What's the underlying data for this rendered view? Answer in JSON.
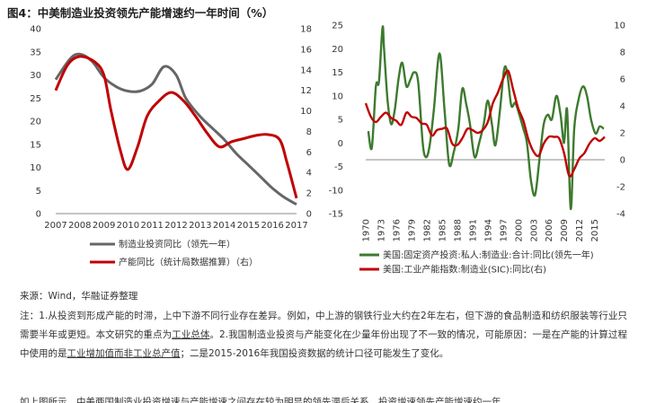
{
  "figure": {
    "title": "图4：中美制造业投资领先产能增速约一年时间（%）"
  },
  "charts": [
    {
      "id": "china",
      "type": "line",
      "x_labels": [
        "2007",
        "2008",
        "2009",
        "2010",
        "2011",
        "2012",
        "2013",
        "2014",
        "2015",
        "2016",
        "2017"
      ],
      "x_range": [
        2007,
        2017
      ],
      "y_left": {
        "range": [
          0,
          40
        ],
        "ticks": [
          "0",
          "5",
          "10",
          "15",
          "20",
          "25",
          "30",
          "35",
          "40"
        ]
      },
      "y_right": {
        "range": [
          0,
          18
        ],
        "ticks": [
          "0",
          "2",
          "4",
          "6",
          "8",
          "10",
          "12",
          "14",
          "16",
          "18"
        ]
      },
      "series": [
        {
          "name": "制造业投资同比（领先一年）",
          "color": "#666666",
          "axis": "left",
          "x": [
            2007,
            2007.6,
            2008,
            2008.5,
            2009,
            2009.5,
            2010,
            2010.5,
            2011,
            2011.5,
            2012,
            2012.4,
            2013,
            2013.5,
            2014,
            2014.5,
            2015,
            2015.5,
            2016,
            2016.5,
            2017
          ],
          "values": [
            29,
            33.5,
            34.5,
            33,
            29.5,
            27.5,
            26.5,
            26.5,
            28,
            31.8,
            30,
            25,
            21,
            18.5,
            16,
            13,
            10.5,
            8,
            5.5,
            3.5,
            2
          ]
        },
        {
          "name": "产能同比（统计局数据推算）（右）",
          "color": "#c00000",
          "axis": "right",
          "x": [
            2007,
            2007.5,
            2008,
            2008.6,
            2009,
            2009.3,
            2009.7,
            2010,
            2010.4,
            2010.8,
            2011.3,
            2011.8,
            2012.3,
            2012.8,
            2013.3,
            2013.8,
            2014.3,
            2014.8,
            2015.3,
            2015.8,
            2016.3,
            2016.6,
            2017
          ],
          "values": [
            12,
            14.5,
            15.3,
            14.8,
            13.5,
            10,
            6,
            4.3,
            6.5,
            9.5,
            11,
            11.8,
            11,
            9.5,
            7.8,
            6.5,
            7,
            7.3,
            7.6,
            7.7,
            7.2,
            5,
            1.5
          ]
        }
      ],
      "legend": [
        {
          "label": "制造业投资同比（领先一年）",
          "color": "#666666"
        },
        {
          "label": "产能同比（统计局数据推算）（右）",
          "color": "#c00000"
        }
      ]
    },
    {
      "id": "us",
      "type": "line",
      "x_labels": [
        "1970",
        "1973",
        "1976",
        "1979",
        "1982",
        "1985",
        "1988",
        "1991",
        "1994",
        "1997",
        "2000",
        "2003",
        "2006",
        "2009",
        "2012",
        "2015"
      ],
      "x_range": [
        1970,
        2017
      ],
      "y_left": {
        "range": [
          -15,
          25
        ],
        "ticks": [
          "-15",
          "-10",
          "-5",
          "0",
          "5",
          "10",
          "15",
          "20",
          "25"
        ]
      },
      "y_right": {
        "range": [
          -4,
          10
        ],
        "ticks": [
          "-4",
          "-2",
          "0",
          "2",
          "4",
          "6",
          "8",
          "10"
        ]
      },
      "series": [
        {
          "name": "美国:固定资产投资:私人:制造业:合计:同比(领先一年)",
          "color": "#3d7a2f",
          "axis": "left",
          "x": [
            1970.5,
            1971.2,
            1972,
            1972.6,
            1973.3,
            1973.6,
            1974.3,
            1975,
            1975.7,
            1976.5,
            1977.2,
            1978,
            1978.8,
            1979.5,
            1980.3,
            1981.2,
            1981.8,
            1982.5,
            1983.4,
            1984.5,
            1985.5,
            1986.4,
            1987.3,
            1988.2,
            1989,
            1989.8,
            1990.5,
            1991.4,
            1992.3,
            1993.2,
            1994,
            1994.8,
            1995.5,
            1996.4,
            1997.2,
            1997.8,
            1998.6,
            1999.4,
            2000.2,
            2001,
            2001.7,
            2002.5,
            2003.3,
            2004.2,
            2005,
            2005.8,
            2006.6,
            2007.5,
            2008.3,
            2009,
            2009.6,
            2010.3,
            2011,
            2011.8,
            2012.7,
            2013.5,
            2014.3,
            2015.2,
            2016,
            2016.8
          ],
          "values": [
            2.5,
            -1,
            12,
            13,
            24.5,
            20,
            9,
            4,
            7,
            14,
            17,
            12,
            13.5,
            15,
            13,
            0,
            -3,
            -1,
            7,
            19,
            7,
            -4.5,
            -2,
            3,
            11.5,
            8,
            4,
            -3,
            0,
            4,
            9,
            4,
            -0.5,
            7,
            15.5,
            15,
            8,
            8.5,
            6,
            3,
            0,
            -8,
            -11,
            -3,
            4,
            6,
            5,
            10,
            6,
            0,
            7,
            -14,
            3,
            9,
            12,
            10,
            5,
            2,
            3.5,
            3
          ]
        },
        {
          "name": "美国:工业产能指数:制造业(SIC):同比(右)",
          "color": "#c00000",
          "axis": "right",
          "x": [
            1970,
            1971,
            1972,
            1973,
            1974,
            1975,
            1976,
            1977,
            1978,
            1979,
            1980,
            1981,
            1982,
            1983,
            1984,
            1985,
            1986,
            1987,
            1988,
            1989,
            1990,
            1991,
            1992,
            1993,
            1994,
            1995,
            1996,
            1997,
            1998,
            1999,
            2000,
            2001,
            2002,
            2003,
            2004,
            2005,
            2006,
            2007,
            2008,
            2009,
            2010,
            2011,
            2012,
            2013,
            2014,
            2015,
            2016,
            2017
          ],
          "values": [
            4.2,
            3.2,
            2.8,
            3.2,
            3.5,
            3.1,
            2.9,
            2.6,
            3.5,
            3.2,
            3.1,
            2.7,
            2.6,
            1.8,
            2.2,
            2.3,
            2.3,
            1.2,
            1.1,
            1.6,
            2.3,
            2.2,
            2.0,
            2.2,
            2.8,
            4.2,
            5.0,
            6.0,
            6.6,
            5.2,
            3.8,
            2.9,
            1.5,
            0.6,
            0.3,
            1.2,
            1.7,
            1.7,
            1.6,
            0.5,
            -1.2,
            -0.7,
            0.1,
            0.5,
            1.2,
            1.6,
            1.4,
            1.7
          ]
        }
      ],
      "legend": [
        {
          "label": "美国:固定资产投资:私人:制造业:合计:同比(领先一年)",
          "color": "#3d7a2f"
        },
        {
          "label": "美国:工业产能指数:制造业(SIC):同比(右)",
          "color": "#c00000"
        }
      ]
    }
  ],
  "source": "来源：Wind，华融证券整理",
  "note": {
    "part1": "注：1.从投资到形成产能的时滞，上中下游不同行业存在差异。例如，中上游的钢铁行业大约在2年左右，但下游的食品制造和纺织服装等行业只需要半年或更短。本文研究的重点为",
    "underlined1": "工业总体",
    "part2": "。2.我国制造业投资与产能变化在少量年份出现了不一致的情况，可能原因：一是在产能的计算过程中使用的是",
    "underlined2": "工业增加值而非工业总产值",
    "part3": "；二是2015-2016年我国投资数据的统计口径可能发生了变化。"
  },
  "cutoff_text": "如上图所示，中美两国制造业投资增速与产能增速之间存在较为明显的领先滞后关系，投资增速领先产能增速约一年。"
}
